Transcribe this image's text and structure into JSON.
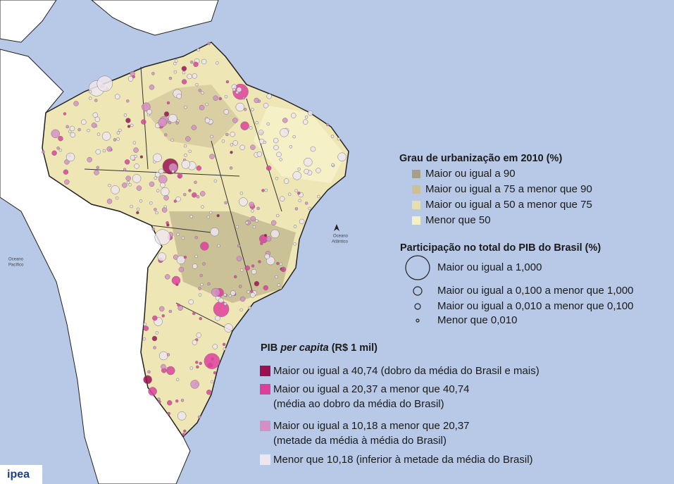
{
  "map": {
    "ocean_labels": [
      [
        "Oceano",
        "Pacífico"
      ],
      [
        "Oceano",
        "Atlântico"
      ]
    ],
    "logo": "ipea",
    "urbanization_legend": {
      "title": "Grau de urbanização em 2010 (%)",
      "items": [
        {
          "label": "Maior ou igual a 90",
          "color": "#a99f87"
        },
        {
          "label": "Maior ou igual a 75 a menor que 90",
          "color": "#cbc197"
        },
        {
          "label": "Maior ou igual a 50 a menor que 75",
          "color": "#e7ddae"
        },
        {
          "label": "Menor que 50",
          "color": "#f5f0c6"
        }
      ]
    },
    "gdp_share_legend": {
      "title": "Participação no total do PIB do Brasil (%)",
      "items": [
        {
          "label": "Maior ou igual a 1,000"
        },
        {
          "label": "Maior ou igual a 0,100 a menor que 1,000"
        },
        {
          "label": "Maior ou igual a 0,010 a menor que 0,100"
        },
        {
          "label": "Menor que 0,010"
        }
      ]
    },
    "gdp_per_capita_legend": {
      "title": [
        "PIB ",
        "per capita",
        " (R$ 1 mil)"
      ],
      "items": [
        {
          "lines": [
            "Maior ou igual a 40,74 (dobro da média do Brasil e mais)"
          ],
          "color": "#9b1150"
        },
        {
          "lines": [
            "Maior ou igual a 20,37 a menor que 40,74",
            "(média ao dobro da média do Brasil)"
          ],
          "color": "#df3f9c"
        },
        {
          "lines": [
            "Maior ou igual a 10,18 a menor que 20,37",
            "(metade da média à média do Brasil)"
          ],
          "color": "#d68fc6"
        },
        {
          "lines": [
            "Menor que 10,18 (inferior à metade da média do Brasil)"
          ],
          "color": "#eee5ef"
        }
      ]
    }
  }
}
